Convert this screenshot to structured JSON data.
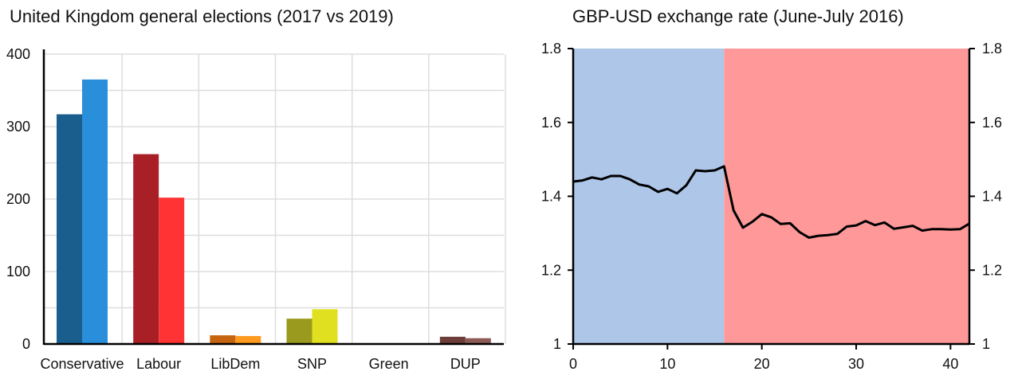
{
  "chart_data": [
    {
      "type": "bar",
      "title": "United Kingdom general elections (2017 vs 2019)",
      "xlabel": "",
      "ylabel": "",
      "ylim": [
        0,
        400
      ],
      "yticks": [
        0,
        100,
        200,
        300,
        400
      ],
      "grid": true,
      "categories": [
        "Conservative",
        "Labour",
        "LibDem",
        "SNP",
        "Green",
        "DUP"
      ],
      "series": [
        {
          "values": [
            317,
            262,
            12,
            35,
            1,
            10
          ]
        },
        {
          "values": [
            365,
            202,
            11,
            48,
            1,
            8
          ]
        }
      ],
      "colors": {
        "2017": [
          "#1a5e8e",
          "#a82026",
          "#c6650f",
          "#9a9a1f",
          "#2e7d32",
          "#6d3d3a"
        ],
        "2019": [
          "#2a8fdb",
          "#ff3333",
          "#ff9a1f",
          "#e0e020",
          "#3fae3f",
          "#8e5a55"
        ]
      }
    },
    {
      "type": "line",
      "title": "GBP-USD exchange rate (June-July 2016)",
      "xlabel": "",
      "ylabel": "",
      "xlim": [
        0,
        42
      ],
      "ylim": [
        1,
        1.8
      ],
      "xticks": [
        0,
        10,
        20,
        30,
        40
      ],
      "yticks": [
        "1",
        "1.2",
        "1.4",
        "1.6",
        "1.8"
      ],
      "grid": false,
      "regions": [
        {
          "x0": 0,
          "x1": 16,
          "color": "#aec6e8"
        },
        {
          "x0": 16,
          "x1": 42,
          "color": "#ff9999"
        }
      ],
      "series": [
        {
          "color": "#000000",
          "x": [
            0,
            1,
            2,
            3,
            4,
            5,
            6,
            7,
            8,
            9,
            10,
            11,
            12,
            13,
            14,
            15,
            16,
            17,
            18,
            19,
            20,
            21,
            22,
            23,
            24,
            25,
            26,
            27,
            28,
            29,
            30,
            31,
            32,
            33,
            34,
            35,
            36,
            37,
            38,
            39,
            40,
            41,
            42
          ],
          "y": [
            1.44,
            1.443,
            1.451,
            1.446,
            1.455,
            1.455,
            1.446,
            1.432,
            1.427,
            1.412,
            1.42,
            1.408,
            1.43,
            1.47,
            1.468,
            1.47,
            1.481,
            1.362,
            1.315,
            1.331,
            1.352,
            1.343,
            1.325,
            1.327,
            1.303,
            1.288,
            1.293,
            1.295,
            1.298,
            1.318,
            1.321,
            1.333,
            1.322,
            1.329,
            1.312,
            1.316,
            1.32,
            1.307,
            1.311,
            1.311,
            1.31,
            1.311,
            1.326
          ]
        }
      ]
    }
  ]
}
